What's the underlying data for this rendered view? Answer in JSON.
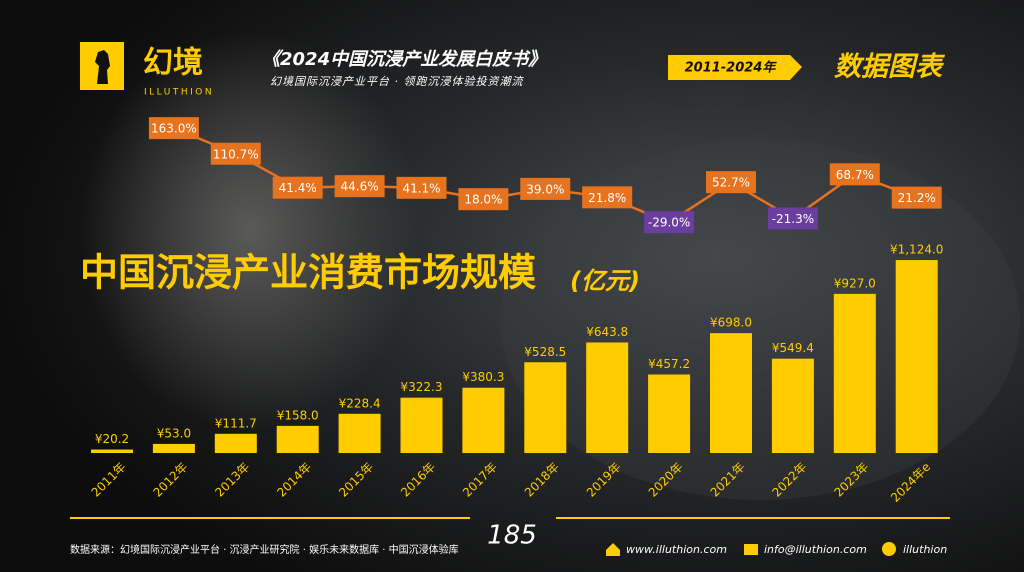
{
  "header": {
    "brand": "幻境",
    "brand_en": "ILLUTHION",
    "report": "《2024中国沉浸产业发展白皮书》",
    "tagline": "幻境国际沉浸产业平台 · 领跑沉浸体验投资潮流",
    "period": "2011-2024年",
    "section": "数据图表"
  },
  "chart_data": {
    "type": "bar",
    "title": "中国沉浸产业消费市场规模",
    "unit": "(亿元)",
    "categories": [
      "2011年",
      "2012年",
      "2013年",
      "2014年",
      "2015年",
      "2016年",
      "2017年",
      "2018年",
      "2019年",
      "2020年",
      "2021年",
      "2022年",
      "2023年",
      "2024年e"
    ],
    "values": [
      20.2,
      53.0,
      111.7,
      158.0,
      228.4,
      322.3,
      380.3,
      528.5,
      643.8,
      457.2,
      698.0,
      549.4,
      927.0,
      1124.0
    ],
    "value_labels": [
      "¥20.2",
      "¥53.0",
      "¥111.7",
      "¥158.0",
      "¥228.4",
      "¥322.3",
      "¥380.3",
      "¥528.5",
      "¥643.8",
      "¥457.2",
      "¥698.0",
      "¥549.4",
      "¥927.0",
      "¥1,124.0"
    ],
    "color": "#ffcc00",
    "ylim": [
      0,
      1200
    ],
    "growth": {
      "type": "line",
      "color": "#e8731f",
      "negative_color": "#6b3d9e",
      "ylim": [
        -40,
        170
      ],
      "values": [
        null,
        163.0,
        110.7,
        41.4,
        44.6,
        41.1,
        18.0,
        39.0,
        21.8,
        -29.0,
        52.7,
        -21.3,
        68.7,
        21.2
      ],
      "value_labels": [
        null,
        "163.0%",
        "110.7%",
        "41.4%",
        "44.6%",
        "41.1%",
        "18.0%",
        "39.0%",
        "21.8%",
        "-29.0%",
        "52.7%",
        "-21.3%",
        "68.7%",
        "21.2%"
      ]
    }
  },
  "footer": {
    "source": "数据来源：幻境国际沉浸产业平台 · 沉浸产业研究院 · 娱乐未来数据库 · 中国沉浸体验库",
    "page": "185",
    "website": "www.illuthion.com",
    "email": "info@illuthion.com",
    "wechat": "illuthion"
  }
}
